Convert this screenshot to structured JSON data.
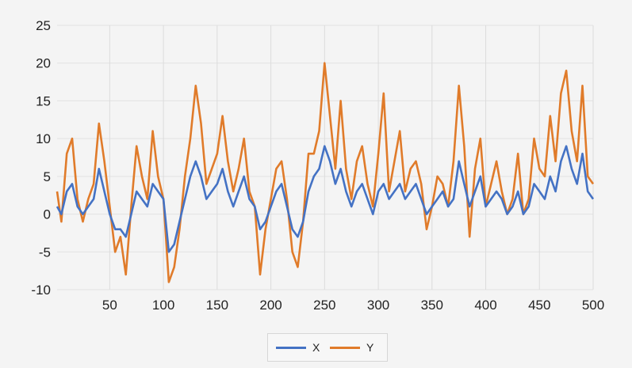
{
  "chart_data": {
    "type": "line",
    "title": "",
    "xlabel": "",
    "ylabel": "",
    "xlim": [
      1,
      500
    ],
    "ylim": [
      -10,
      25
    ],
    "x_ticks": [
      50,
      100,
      150,
      200,
      250,
      300,
      350,
      400,
      450,
      500
    ],
    "y_ticks": [
      25,
      20,
      15,
      10,
      5,
      0,
      -5,
      -10
    ],
    "grid": "vertical",
    "legend_position": "bottom",
    "series": [
      {
        "name": "X",
        "color": "#4472c4",
        "x": [
          1,
          5,
          10,
          15,
          20,
          25,
          30,
          35,
          40,
          45,
          50,
          55,
          60,
          65,
          70,
          75,
          80,
          85,
          90,
          95,
          100,
          105,
          110,
          115,
          120,
          125,
          130,
          135,
          140,
          145,
          150,
          155,
          160,
          165,
          170,
          175,
          180,
          185,
          190,
          195,
          200,
          205,
          210,
          215,
          220,
          225,
          230,
          235,
          240,
          245,
          250,
          255,
          260,
          265,
          270,
          275,
          280,
          285,
          290,
          295,
          300,
          305,
          310,
          315,
          320,
          325,
          330,
          335,
          340,
          345,
          350,
          355,
          360,
          365,
          370,
          375,
          380,
          385,
          390,
          395,
          400,
          405,
          410,
          415,
          420,
          425,
          430,
          435,
          440,
          445,
          450,
          455,
          460,
          465,
          470,
          475,
          480,
          485,
          490,
          495,
          500
        ],
        "y": [
          1,
          0,
          3,
          4,
          1,
          0,
          1,
          2,
          6,
          3,
          0,
          -2,
          -2,
          -3,
          0,
          3,
          2,
          1,
          4,
          3,
          2,
          -5,
          -4,
          -1,
          2,
          5,
          7,
          5,
          2,
          3,
          4,
          6,
          3,
          1,
          3,
          5,
          2,
          1,
          -2,
          -1,
          1,
          3,
          4,
          1,
          -2,
          -3,
          -1,
          3,
          5,
          6,
          9,
          7,
          4,
          6,
          3,
          1,
          3,
          4,
          2,
          0,
          3,
          4,
          2,
          3,
          4,
          2,
          3,
          4,
          2,
          0,
          1,
          2,
          3,
          1,
          2,
          7,
          4,
          1,
          3,
          5,
          1,
          2,
          3,
          2,
          0,
          1,
          3,
          0,
          1,
          4,
          3,
          2,
          5,
          3,
          7,
          9,
          6,
          4,
          8,
          3,
          2
        ]
      },
      {
        "name": "Y",
        "color": "#e07b2a",
        "x": [
          1,
          5,
          10,
          15,
          20,
          25,
          30,
          35,
          40,
          45,
          50,
          55,
          60,
          65,
          70,
          75,
          80,
          85,
          90,
          95,
          100,
          105,
          110,
          115,
          120,
          125,
          130,
          135,
          140,
          145,
          150,
          155,
          160,
          165,
          170,
          175,
          180,
          185,
          190,
          195,
          200,
          205,
          210,
          215,
          220,
          225,
          230,
          235,
          240,
          245,
          250,
          255,
          260,
          265,
          270,
          275,
          280,
          285,
          290,
          295,
          300,
          305,
          310,
          315,
          320,
          325,
          330,
          335,
          340,
          345,
          350,
          355,
          360,
          365,
          370,
          375,
          380,
          385,
          390,
          395,
          400,
          405,
          410,
          415,
          420,
          425,
          430,
          435,
          440,
          445,
          450,
          455,
          460,
          465,
          470,
          475,
          480,
          485,
          490,
          495,
          500
        ],
        "y": [
          3,
          -1,
          8,
          10,
          2,
          -1,
          2,
          4,
          12,
          7,
          1,
          -5,
          -3,
          -8,
          1,
          9,
          5,
          2,
          11,
          5,
          2,
          -9,
          -7,
          -2,
          5,
          10,
          17,
          12,
          4,
          6,
          8,
          13,
          7,
          3,
          6,
          10,
          3,
          1,
          -8,
          -2,
          2,
          6,
          7,
          2,
          -5,
          -7,
          -1,
          8,
          8,
          11,
          20,
          13,
          6,
          15,
          6,
          2,
          7,
          9,
          4,
          1,
          8,
          16,
          3,
          7,
          11,
          3,
          6,
          7,
          4,
          -2,
          1,
          5,
          4,
          1,
          7,
          17,
          9,
          -3,
          6,
          10,
          1,
          4,
          7,
          3,
          0,
          2,
          8,
          0,
          2,
          10,
          6,
          5,
          13,
          7,
          16,
          19,
          11,
          7,
          17,
          5,
          4
        ]
      }
    ]
  }
}
